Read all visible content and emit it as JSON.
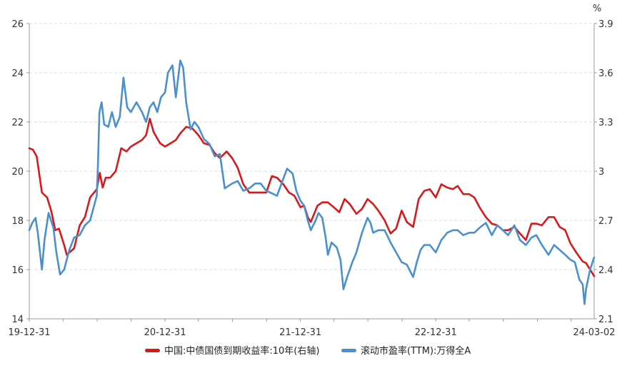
{
  "chart_data": {
    "type": "line",
    "title": "",
    "x_ticks": [
      "19-12-31",
      "20-12-31",
      "21-12-31",
      "22-12-31",
      "24-03-02"
    ],
    "x_range": [
      "2019-12-31",
      "2024-03-02"
    ],
    "y_left": {
      "label": "",
      "range": [
        14,
        26
      ],
      "ticks": [
        "14",
        "16",
        "18",
        "20",
        "22",
        "24",
        "26"
      ]
    },
    "y_right": {
      "label": "%",
      "range": [
        2.1,
        3.9
      ],
      "ticks": [
        "2.1",
        "2.4",
        "2.7",
        "3",
        "3.3",
        "3.6",
        "3.9"
      ]
    },
    "grid": "horizontal dashed",
    "legend_position": "bottom",
    "series": [
      {
        "name": "中国:中债国债到期收益率:10年(右轴)",
        "axis": "right",
        "color": "#d7191c",
        "points": [
          [
            "2019-12-31",
            3.14
          ],
          [
            "2020-01-10",
            3.13
          ],
          [
            "2020-01-20",
            3.09
          ],
          [
            "2020-02-03",
            2.87
          ],
          [
            "2020-02-17",
            2.84
          ],
          [
            "2020-02-28",
            2.76
          ],
          [
            "2020-03-10",
            2.64
          ],
          [
            "2020-03-20",
            2.65
          ],
          [
            "2020-04-03",
            2.55
          ],
          [
            "2020-04-10",
            2.49
          ],
          [
            "2020-04-20",
            2.51
          ],
          [
            "2020-04-30",
            2.53
          ],
          [
            "2020-05-15",
            2.67
          ],
          [
            "2020-05-29",
            2.72
          ],
          [
            "2020-06-12",
            2.84
          ],
          [
            "2020-06-30",
            2.89
          ],
          [
            "2020-07-08",
            2.99
          ],
          [
            "2020-07-16",
            2.9
          ],
          [
            "2020-07-24",
            2.96
          ],
          [
            "2020-08-05",
            2.96
          ],
          [
            "2020-08-20",
            3.0
          ],
          [
            "2020-09-04",
            3.14
          ],
          [
            "2020-09-18",
            3.12
          ],
          [
            "2020-09-30",
            3.15
          ],
          [
            "2020-10-15",
            3.17
          ],
          [
            "2020-10-30",
            3.19
          ],
          [
            "2020-11-10",
            3.22
          ],
          [
            "2020-11-20",
            3.32
          ],
          [
            "2020-11-30",
            3.24
          ],
          [
            "2020-12-10",
            3.2
          ],
          [
            "2020-12-18",
            3.17
          ],
          [
            "2020-12-31",
            3.15
          ],
          [
            "2021-01-15",
            3.17
          ],
          [
            "2021-01-29",
            3.19
          ],
          [
            "2021-02-10",
            3.23
          ],
          [
            "2021-02-26",
            3.27
          ],
          [
            "2021-03-15",
            3.26
          ],
          [
            "2021-03-31",
            3.22
          ],
          [
            "2021-04-15",
            3.17
          ],
          [
            "2021-04-30",
            3.16
          ],
          [
            "2021-05-14",
            3.11
          ],
          [
            "2021-05-28",
            3.08
          ],
          [
            "2021-06-15",
            3.12
          ],
          [
            "2021-06-30",
            3.08
          ],
          [
            "2021-07-15",
            3.02
          ],
          [
            "2021-07-30",
            2.92
          ],
          [
            "2021-08-15",
            2.87
          ],
          [
            "2021-08-31",
            2.87
          ],
          [
            "2021-09-15",
            2.87
          ],
          [
            "2021-09-30",
            2.87
          ],
          [
            "2021-10-15",
            2.97
          ],
          [
            "2021-10-29",
            2.96
          ],
          [
            "2021-11-15",
            2.92
          ],
          [
            "2021-11-30",
            2.87
          ],
          [
            "2021-12-15",
            2.85
          ],
          [
            "2021-12-31",
            2.78
          ],
          [
            "2022-01-10",
            2.79
          ],
          [
            "2022-01-20",
            2.72
          ],
          [
            "2022-01-28",
            2.69
          ],
          [
            "2022-02-15",
            2.79
          ],
          [
            "2022-02-28",
            2.81
          ],
          [
            "2022-03-15",
            2.81
          ],
          [
            "2022-03-31",
            2.78
          ],
          [
            "2022-04-15",
            2.75
          ],
          [
            "2022-04-29",
            2.83
          ],
          [
            "2022-05-13",
            2.8
          ],
          [
            "2022-05-31",
            2.74
          ],
          [
            "2022-06-15",
            2.77
          ],
          [
            "2022-06-30",
            2.83
          ],
          [
            "2022-07-15",
            2.8
          ],
          [
            "2022-07-29",
            2.76
          ],
          [
            "2022-08-15",
            2.7
          ],
          [
            "2022-08-31",
            2.62
          ],
          [
            "2022-09-15",
            2.65
          ],
          [
            "2022-09-30",
            2.76
          ],
          [
            "2022-10-14",
            2.69
          ],
          [
            "2022-10-31",
            2.66
          ],
          [
            "2022-11-15",
            2.83
          ],
          [
            "2022-11-30",
            2.88
          ],
          [
            "2022-12-15",
            2.89
          ],
          [
            "2022-12-31",
            2.84
          ],
          [
            "2023-01-15",
            2.92
          ],
          [
            "2023-01-31",
            2.9
          ],
          [
            "2023-02-15",
            2.89
          ],
          [
            "2023-02-28",
            2.91
          ],
          [
            "2023-03-15",
            2.86
          ],
          [
            "2023-03-31",
            2.86
          ],
          [
            "2023-04-14",
            2.84
          ],
          [
            "2023-04-28",
            2.78
          ],
          [
            "2023-05-15",
            2.72
          ],
          [
            "2023-05-31",
            2.68
          ],
          [
            "2023-06-15",
            2.67
          ],
          [
            "2023-06-30",
            2.64
          ],
          [
            "2023-07-14",
            2.64
          ],
          [
            "2023-07-31",
            2.66
          ],
          [
            "2023-08-15",
            2.62
          ],
          [
            "2023-08-31",
            2.58
          ],
          [
            "2023-09-15",
            2.68
          ],
          [
            "2023-09-28",
            2.68
          ],
          [
            "2023-10-13",
            2.67
          ],
          [
            "2023-10-31",
            2.72
          ],
          [
            "2023-11-15",
            2.72
          ],
          [
            "2023-11-30",
            2.66
          ],
          [
            "2023-12-15",
            2.64
          ],
          [
            "2023-12-29",
            2.56
          ],
          [
            "2024-01-15",
            2.5
          ],
          [
            "2024-01-31",
            2.45
          ],
          [
            "2024-02-09",
            2.44
          ],
          [
            "2024-02-20",
            2.4
          ],
          [
            "2024-03-02",
            2.36
          ]
        ]
      },
      {
        "name": "滚动市盈率(TTM):万得全A",
        "axis": "left",
        "color": "#4a90cf",
        "points": [
          [
            "2019-12-31",
            17.6
          ],
          [
            "2020-01-08",
            17.9
          ],
          [
            "2020-01-17",
            18.1
          ],
          [
            "2020-01-23",
            17.5
          ],
          [
            "2020-02-03",
            16.0
          ],
          [
            "2020-02-10",
            17.2
          ],
          [
            "2020-02-21",
            18.3
          ],
          [
            "2020-03-05",
            17.7
          ],
          [
            "2020-03-13",
            16.7
          ],
          [
            "2020-03-23",
            15.8
          ],
          [
            "2020-04-03",
            16.0
          ],
          [
            "2020-04-17",
            16.8
          ],
          [
            "2020-04-30",
            17.3
          ],
          [
            "2020-05-15",
            17.4
          ],
          [
            "2020-05-29",
            17.8
          ],
          [
            "2020-06-12",
            18.0
          ],
          [
            "2020-06-30",
            19.0
          ],
          [
            "2020-07-03",
            20.2
          ],
          [
            "2020-07-07",
            22.4
          ],
          [
            "2020-07-13",
            22.8
          ],
          [
            "2020-07-20",
            21.9
          ],
          [
            "2020-07-31",
            21.8
          ],
          [
            "2020-08-10",
            22.4
          ],
          [
            "2020-08-20",
            21.8
          ],
          [
            "2020-08-31",
            22.2
          ],
          [
            "2020-09-10",
            23.8
          ],
          [
            "2020-09-20",
            22.6
          ],
          [
            "2020-09-30",
            22.4
          ],
          [
            "2020-10-15",
            22.8
          ],
          [
            "2020-10-30",
            22.4
          ],
          [
            "2020-11-10",
            22.0
          ],
          [
            "2020-11-20",
            22.6
          ],
          [
            "2020-11-30",
            22.8
          ],
          [
            "2020-12-10",
            22.4
          ],
          [
            "2020-12-20",
            23.0
          ],
          [
            "2020-12-31",
            23.2
          ],
          [
            "2021-01-08",
            24.0
          ],
          [
            "2021-01-20",
            24.3
          ],
          [
            "2021-01-29",
            23.0
          ],
          [
            "2021-02-10",
            24.5
          ],
          [
            "2021-02-18",
            24.2
          ],
          [
            "2021-02-26",
            22.8
          ],
          [
            "2021-03-10",
            21.7
          ],
          [
            "2021-03-20",
            22.0
          ],
          [
            "2021-03-31",
            21.8
          ],
          [
            "2021-04-15",
            21.3
          ],
          [
            "2021-04-30",
            21.1
          ],
          [
            "2021-05-14",
            20.6
          ],
          [
            "2021-05-28",
            20.7
          ],
          [
            "2021-06-10",
            19.3
          ],
          [
            "2021-06-20",
            19.4
          ],
          [
            "2021-06-30",
            19.5
          ],
          [
            "2021-07-15",
            19.6
          ],
          [
            "2021-07-30",
            19.2
          ],
          [
            "2021-08-15",
            19.3
          ],
          [
            "2021-08-31",
            19.5
          ],
          [
            "2021-09-15",
            19.5
          ],
          [
            "2021-09-30",
            19.2
          ],
          [
            "2021-10-15",
            19.1
          ],
          [
            "2021-10-29",
            19.0
          ],
          [
            "2021-11-10",
            19.5
          ],
          [
            "2021-11-25",
            20.1
          ],
          [
            "2021-12-10",
            19.9
          ],
          [
            "2021-12-20",
            19.2
          ],
          [
            "2021-12-31",
            18.8
          ],
          [
            "2022-01-10",
            18.6
          ],
          [
            "2022-01-20",
            18.0
          ],
          [
            "2022-01-28",
            17.6
          ],
          [
            "2022-02-10",
            18.0
          ],
          [
            "2022-02-18",
            18.3
          ],
          [
            "2022-02-28",
            18.1
          ],
          [
            "2022-03-09",
            17.3
          ],
          [
            "2022-03-15",
            16.6
          ],
          [
            "2022-03-25",
            17.1
          ],
          [
            "2022-04-08",
            16.9
          ],
          [
            "2022-04-18",
            16.4
          ],
          [
            "2022-04-26",
            15.2
          ],
          [
            "2022-05-06",
            15.7
          ],
          [
            "2022-05-20",
            16.3
          ],
          [
            "2022-05-31",
            16.7
          ],
          [
            "2022-06-15",
            17.5
          ],
          [
            "2022-06-30",
            18.1
          ],
          [
            "2022-07-08",
            17.9
          ],
          [
            "2022-07-15",
            17.5
          ],
          [
            "2022-07-29",
            17.6
          ],
          [
            "2022-08-15",
            17.6
          ],
          [
            "2022-08-31",
            17.1
          ],
          [
            "2022-09-15",
            16.7
          ],
          [
            "2022-09-30",
            16.3
          ],
          [
            "2022-10-14",
            16.2
          ],
          [
            "2022-10-31",
            15.7
          ],
          [
            "2022-11-10",
            16.3
          ],
          [
            "2022-11-20",
            16.8
          ],
          [
            "2022-11-30",
            17.0
          ],
          [
            "2022-12-15",
            17.0
          ],
          [
            "2022-12-31",
            16.7
          ],
          [
            "2023-01-15",
            17.2
          ],
          [
            "2023-01-31",
            17.5
          ],
          [
            "2023-02-15",
            17.6
          ],
          [
            "2023-02-28",
            17.6
          ],
          [
            "2023-03-15",
            17.4
          ],
          [
            "2023-03-31",
            17.5
          ],
          [
            "2023-04-14",
            17.5
          ],
          [
            "2023-04-28",
            17.7
          ],
          [
            "2023-05-15",
            17.9
          ],
          [
            "2023-05-31",
            17.4
          ],
          [
            "2023-06-15",
            17.8
          ],
          [
            "2023-06-30",
            17.6
          ],
          [
            "2023-07-14",
            17.4
          ],
          [
            "2023-07-31",
            17.8
          ],
          [
            "2023-08-15",
            17.2
          ],
          [
            "2023-08-31",
            17.0
          ],
          [
            "2023-09-15",
            17.3
          ],
          [
            "2023-09-28",
            17.4
          ],
          [
            "2023-10-13",
            17.0
          ],
          [
            "2023-10-31",
            16.6
          ],
          [
            "2023-11-15",
            17.0
          ],
          [
            "2023-11-30",
            16.8
          ],
          [
            "2023-12-15",
            16.6
          ],
          [
            "2023-12-29",
            16.4
          ],
          [
            "2024-01-10",
            16.3
          ],
          [
            "2024-01-22",
            15.6
          ],
          [
            "2024-01-31",
            15.4
          ],
          [
            "2024-02-05",
            14.6
          ],
          [
            "2024-02-09",
            15.2
          ],
          [
            "2024-02-20",
            16.0
          ],
          [
            "2024-03-02",
            16.5
          ]
        ]
      }
    ]
  }
}
